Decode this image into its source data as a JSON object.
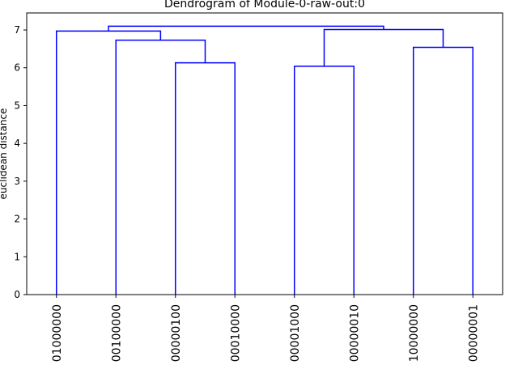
{
  "chart_data": {
    "type": "dendrogram",
    "title": "Dendrogram of Module-0-raw-out:0",
    "xlabel": "",
    "ylabel": "euclidean distance",
    "ylim": [
      0,
      7.45
    ],
    "yticks": [
      0,
      1,
      2,
      3,
      4,
      5,
      6,
      7
    ],
    "leaves": [
      "01000000",
      "00100000",
      "00000100",
      "00010000",
      "00001000",
      "00000010",
      "10000000",
      "00000001"
    ],
    "merges": [
      {
        "name": "n8",
        "left": "00000100",
        "right": "00010000",
        "height": 6.13
      },
      {
        "name": "n9",
        "left": "00001000",
        "right": "00000010",
        "height": 6.04
      },
      {
        "name": "n10",
        "left": "10000000",
        "right": "00000001",
        "height": 6.54
      },
      {
        "name": "n11",
        "left": "00100000",
        "right": "n8",
        "height": 6.73
      },
      {
        "name": "n12",
        "left": "01000000",
        "right": "n11",
        "height": 6.97
      },
      {
        "name": "n13",
        "left": "n9",
        "right": "n10",
        "height": 7.01
      },
      {
        "name": "n14",
        "left": "n12",
        "right": "n13",
        "height": 7.1
      }
    ],
    "line_color": "#0000ff",
    "grid": false
  }
}
